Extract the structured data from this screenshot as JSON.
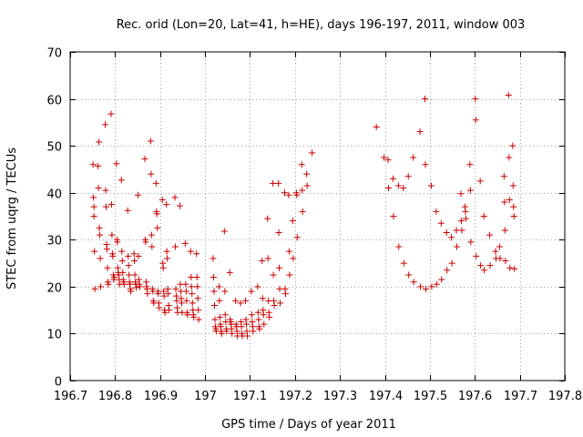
{
  "chart_data": {
    "type": "scatter",
    "title": "Rec. orid (Lon=20, Lat=41, h=HE), days 196-197, 2011, window 003",
    "xlabel": "GPS time / Days of year 2011",
    "ylabel": "STEC from uqrg / TECUs",
    "xlim": [
      196.7,
      197.8
    ],
    "ylim": [
      0,
      70
    ],
    "x_ticks": [
      196.7,
      196.8,
      196.9,
      197.0,
      197.1,
      197.2,
      197.3,
      197.4,
      197.5,
      197.6,
      197.7,
      197.8
    ],
    "x_tick_labels": [
      "196.7",
      "196.8",
      "196.9",
      "197",
      "197.1",
      "197.2",
      "197.3",
      "197.4",
      "197.5",
      "197.6",
      "197.7",
      "197.8"
    ],
    "y_ticks": [
      0,
      10,
      20,
      30,
      40,
      50,
      60,
      70
    ],
    "y_tick_labels": [
      "0",
      "10",
      "20",
      "30",
      "40",
      "50",
      "60",
      "70"
    ],
    "grid": true,
    "marker": "plus",
    "marker_color": "#cc0000",
    "points": [
      [
        196.751,
        46.0
      ],
      [
        196.752,
        39.0
      ],
      [
        196.753,
        37.0
      ],
      [
        196.753,
        35.0
      ],
      [
        196.754,
        27.5
      ],
      [
        196.755,
        19.5
      ],
      [
        196.762,
        45.7
      ],
      [
        196.763,
        41.0
      ],
      [
        196.764,
        50.8
      ],
      [
        196.765,
        32.5
      ],
      [
        196.766,
        31.0
      ],
      [
        196.767,
        26.0
      ],
      [
        196.768,
        20.0
      ],
      [
        196.778,
        54.5
      ],
      [
        196.779,
        40.5
      ],
      [
        196.78,
        37.0
      ],
      [
        196.781,
        29.0
      ],
      [
        196.782,
        28.0
      ],
      [
        196.783,
        24.0
      ],
      [
        196.784,
        21.0
      ],
      [
        196.785,
        20.5
      ],
      [
        196.791,
        56.8
      ],
      [
        196.792,
        37.5
      ],
      [
        196.793,
        31.0
      ],
      [
        196.794,
        27.0
      ],
      [
        196.795,
        26.5
      ],
      [
        196.796,
        22.5
      ],
      [
        196.797,
        21.5
      ],
      [
        196.798,
        22.0
      ],
      [
        196.803,
        46.2
      ],
      [
        196.804,
        30.0
      ],
      [
        196.805,
        29.5
      ],
      [
        196.806,
        24.0
      ],
      [
        196.807,
        23.0
      ],
      [
        196.808,
        22.5
      ],
      [
        196.809,
        21.5
      ],
      [
        196.81,
        20.5
      ],
      [
        196.814,
        42.7
      ],
      [
        196.815,
        27.5
      ],
      [
        196.816,
        25.5
      ],
      [
        196.817,
        23.0
      ],
      [
        196.818,
        21.5
      ],
      [
        196.819,
        21.0
      ],
      [
        196.82,
        20.5
      ],
      [
        196.828,
        36.2
      ],
      [
        196.829,
        26.5
      ],
      [
        196.83,
        24.5
      ],
      [
        196.831,
        22.5
      ],
      [
        196.832,
        21.0
      ],
      [
        196.833,
        20.5
      ],
      [
        196.834,
        19.5
      ],
      [
        196.835,
        19.0
      ],
      [
        196.842,
        27.0
      ],
      [
        196.843,
        25.5
      ],
      [
        196.844,
        22.5
      ],
      [
        196.845,
        21.0
      ],
      [
        196.846,
        20.5
      ],
      [
        196.847,
        19.8
      ],
      [
        196.851,
        39.5
      ],
      [
        196.852,
        26.5
      ],
      [
        196.853,
        21.5
      ],
      [
        196.854,
        20.5
      ],
      [
        196.855,
        20.0
      ],
      [
        196.866,
        47.2
      ],
      [
        196.867,
        30.0
      ],
      [
        196.868,
        29.5
      ],
      [
        196.869,
        21.0
      ],
      [
        196.87,
        20.0
      ],
      [
        196.871,
        19.5
      ],
      [
        196.872,
        18.5
      ],
      [
        196.879,
        51.0
      ],
      [
        196.88,
        44.0
      ],
      [
        196.881,
        31.0
      ],
      [
        196.882,
        28.5
      ],
      [
        196.883,
        19.5
      ],
      [
        196.884,
        19.0
      ],
      [
        196.885,
        17.0
      ],
      [
        196.886,
        16.5
      ],
      [
        196.891,
        42.0
      ],
      [
        196.892,
        36.0
      ],
      [
        196.893,
        35.5
      ],
      [
        196.894,
        32.5
      ],
      [
        196.895,
        19.0
      ],
      [
        196.896,
        18.5
      ],
      [
        196.897,
        16.5
      ],
      [
        196.898,
        15.5
      ],
      [
        196.905,
        38.5
      ],
      [
        196.906,
        25.0
      ],
      [
        196.907,
        24.0
      ],
      [
        196.908,
        19.0
      ],
      [
        196.909,
        18.0
      ],
      [
        196.91,
        15.0
      ],
      [
        196.911,
        14.5
      ],
      [
        196.914,
        37.5
      ],
      [
        196.915,
        27.5
      ],
      [
        196.916,
        26.0
      ],
      [
        196.917,
        19.5
      ],
      [
        196.918,
        18.5
      ],
      [
        196.919,
        16.0
      ],
      [
        196.92,
        15.0
      ],
      [
        196.933,
        39.0
      ],
      [
        196.934,
        28.5
      ],
      [
        196.935,
        19.5
      ],
      [
        196.936,
        18.0
      ],
      [
        196.937,
        17.0
      ],
      [
        196.938,
        15.5
      ],
      [
        196.939,
        14.5
      ],
      [
        196.944,
        37.2
      ],
      [
        196.945,
        20.5
      ],
      [
        196.946,
        19.0
      ],
      [
        196.947,
        17.5
      ],
      [
        196.948,
        16.5
      ],
      [
        196.949,
        14.5
      ],
      [
        196.956,
        29.2
      ],
      [
        196.957,
        20.5
      ],
      [
        196.958,
        19.0
      ],
      [
        196.959,
        17.0
      ],
      [
        196.96,
        14.5
      ],
      [
        196.961,
        14.0
      ],
      [
        196.968,
        27.5
      ],
      [
        196.969,
        22.0
      ],
      [
        196.97,
        20.0
      ],
      [
        196.971,
        18.5
      ],
      [
        196.972,
        16.5
      ],
      [
        196.973,
        15.0
      ],
      [
        196.974,
        14.0
      ],
      [
        196.975,
        13.5
      ],
      [
        196.981,
        27.0
      ],
      [
        196.982,
        22.0
      ],
      [
        196.983,
        20.0
      ],
      [
        196.984,
        17.5
      ],
      [
        196.985,
        15.0
      ],
      [
        196.986,
        13.0
      ],
      [
        197.018,
        26.0
      ],
      [
        197.019,
        22.0
      ],
      [
        197.02,
        19.0
      ],
      [
        197.021,
        16.0
      ],
      [
        197.022,
        13.0
      ],
      [
        197.023,
        11.5
      ],
      [
        197.024,
        11.0
      ],
      [
        197.025,
        10.5
      ],
      [
        197.031,
        20.0
      ],
      [
        197.032,
        17.0
      ],
      [
        197.033,
        13.5
      ],
      [
        197.034,
        12.0
      ],
      [
        197.035,
        11.5
      ],
      [
        197.036,
        10.5
      ],
      [
        197.037,
        10.0
      ],
      [
        197.043,
        31.8
      ],
      [
        197.044,
        19.0
      ],
      [
        197.045,
        14.0
      ],
      [
        197.046,
        12.5
      ],
      [
        197.047,
        11.0
      ],
      [
        197.048,
        10.5
      ],
      [
        197.055,
        23.0
      ],
      [
        197.056,
        13.0
      ],
      [
        197.057,
        12.5
      ],
      [
        197.058,
        12.0
      ],
      [
        197.059,
        11.0
      ],
      [
        197.06,
        10.0
      ],
      [
        197.068,
        17.0
      ],
      [
        197.069,
        12.0
      ],
      [
        197.07,
        11.5
      ],
      [
        197.071,
        10.5
      ],
      [
        197.072,
        9.5
      ],
      [
        197.079,
        16.5
      ],
      [
        197.08,
        12.5
      ],
      [
        197.081,
        11.5
      ],
      [
        197.082,
        10.0
      ],
      [
        197.083,
        9.5
      ],
      [
        197.09,
        17.0
      ],
      [
        197.091,
        13.0
      ],
      [
        197.092,
        12.0
      ],
      [
        197.093,
        10.5
      ],
      [
        197.094,
        9.5
      ],
      [
        197.103,
        19.0
      ],
      [
        197.104,
        14.0
      ],
      [
        197.105,
        12.5
      ],
      [
        197.106,
        11.5
      ],
      [
        197.107,
        10.5
      ],
      [
        197.117,
        20.0
      ],
      [
        197.118,
        14.5
      ],
      [
        197.119,
        13.0
      ],
      [
        197.12,
        11.5
      ],
      [
        197.121,
        11.0
      ],
      [
        197.127,
        25.5
      ],
      [
        197.128,
        17.5
      ],
      [
        197.129,
        15.0
      ],
      [
        197.13,
        14.0
      ],
      [
        197.131,
        12.0
      ],
      [
        197.139,
        34.5
      ],
      [
        197.14,
        26.0
      ],
      [
        197.141,
        17.0
      ],
      [
        197.142,
        14.5
      ],
      [
        197.143,
        13.5
      ],
      [
        197.151,
        42.0
      ],
      [
        197.152,
        22.5
      ],
      [
        197.153,
        17.0
      ],
      [
        197.154,
        16.0
      ],
      [
        197.163,
        42.0
      ],
      [
        197.164,
        31.5
      ],
      [
        197.165,
        24.0
      ],
      [
        197.166,
        19.5
      ],
      [
        197.167,
        16.5
      ],
      [
        197.177,
        40.0
      ],
      [
        197.178,
        19.5
      ],
      [
        197.179,
        18.5
      ],
      [
        197.186,
        39.5
      ],
      [
        197.187,
        27.5
      ],
      [
        197.188,
        22.5
      ],
      [
        197.195,
        34.0
      ],
      [
        197.196,
        26.0
      ],
      [
        197.203,
        40.0
      ],
      [
        197.204,
        39.5
      ],
      [
        197.205,
        30.5
      ],
      [
        197.215,
        46.0
      ],
      [
        197.216,
        40.5
      ],
      [
        197.217,
        36.0
      ],
      [
        197.226,
        44.0
      ],
      [
        197.227,
        41.5
      ],
      [
        197.238,
        48.5
      ],
      [
        197.381,
        54.0
      ],
      [
        197.398,
        47.5
      ],
      [
        197.407,
        47.0
      ],
      [
        197.408,
        41.0
      ],
      [
        197.418,
        43.0
      ],
      [
        197.419,
        35.0
      ],
      [
        197.43,
        41.5
      ],
      [
        197.431,
        28.5
      ],
      [
        197.441,
        41.0
      ],
      [
        197.442,
        25.0
      ],
      [
        197.452,
        43.5
      ],
      [
        197.453,
        22.5
      ],
      [
        197.463,
        47.5
      ],
      [
        197.464,
        21.0
      ],
      [
        197.478,
        53.0
      ],
      [
        197.479,
        20.0
      ],
      [
        197.489,
        60.0
      ],
      [
        197.49,
        46.0
      ],
      [
        197.491,
        19.5
      ],
      [
        197.503,
        41.5
      ],
      [
        197.504,
        20.0
      ],
      [
        197.514,
        36.0
      ],
      [
        197.515,
        20.5
      ],
      [
        197.525,
        33.5
      ],
      [
        197.526,
        21.5
      ],
      [
        197.537,
        31.5
      ],
      [
        197.538,
        23.5
      ],
      [
        197.548,
        30.5
      ],
      [
        197.549,
        25.0
      ],
      [
        197.559,
        32.0
      ],
      [
        197.56,
        28.5
      ],
      [
        197.569,
        39.8
      ],
      [
        197.57,
        34.0
      ],
      [
        197.571,
        32.0
      ],
      [
        197.578,
        37.0
      ],
      [
        197.579,
        36.0
      ],
      [
        197.58,
        34.5
      ],
      [
        197.589,
        46.0
      ],
      [
        197.59,
        40.5
      ],
      [
        197.591,
        29.5
      ],
      [
        197.601,
        60.0
      ],
      [
        197.602,
        55.5
      ],
      [
        197.603,
        26.5
      ],
      [
        197.612,
        42.5
      ],
      [
        197.613,
        24.5
      ],
      [
        197.62,
        35.0
      ],
      [
        197.621,
        23.5
      ],
      [
        197.633,
        31.0
      ],
      [
        197.634,
        24.5
      ],
      [
        197.646,
        27.5
      ],
      [
        197.647,
        26.0
      ],
      [
        197.655,
        28.5
      ],
      [
        197.656,
        26.0
      ],
      [
        197.665,
        43.5
      ],
      [
        197.666,
        38.0
      ],
      [
        197.667,
        32.0
      ],
      [
        197.668,
        25.5
      ],
      [
        197.675,
        60.8
      ],
      [
        197.676,
        47.5
      ],
      [
        197.677,
        38.5
      ],
      [
        197.678,
        24.0
      ],
      [
        197.684,
        50.0
      ],
      [
        197.685,
        41.5
      ],
      [
        197.686,
        37.0
      ],
      [
        197.687,
        35.0
      ],
      [
        197.688,
        23.8
      ]
    ]
  }
}
